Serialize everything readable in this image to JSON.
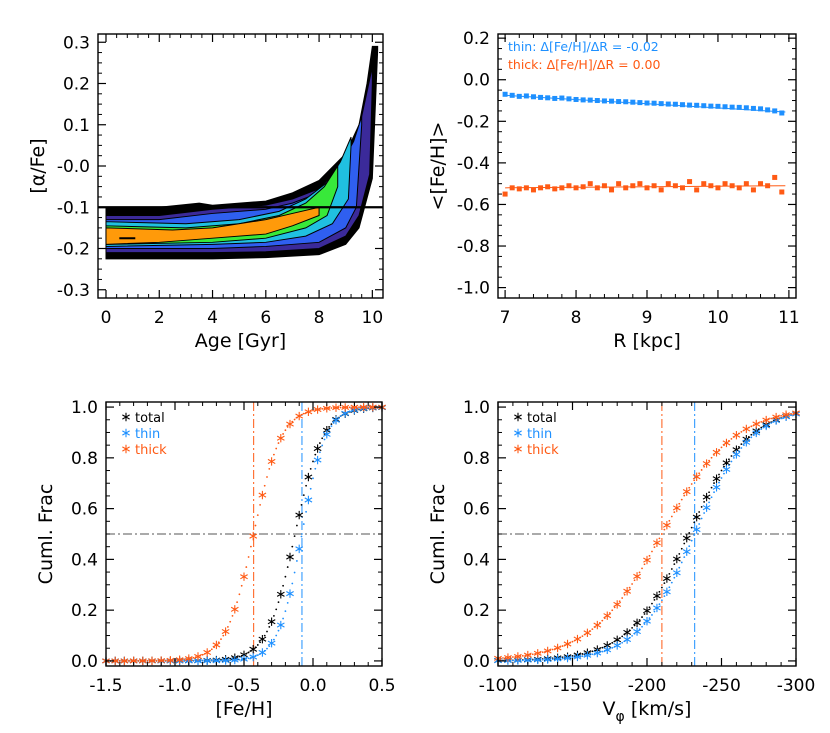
{
  "colors": {
    "blue": "#1e90ff",
    "orange": "#ff5a14",
    "black": "#000000",
    "gray": "#555555",
    "contour": [
      "#000000",
      "#3b2a9a",
      "#2f5ff0",
      "#20c0e0",
      "#38e83a",
      "#ff9a0a"
    ]
  },
  "chart_data": [
    {
      "id": "alpha-age",
      "type": "contour",
      "title": "",
      "xlabel": "Age  [Gyr]",
      "ylabel": "[α/Fe]",
      "xlim": [
        -0.3,
        10.4
      ],
      "ylim": [
        -0.32,
        0.32
      ],
      "xticks": [
        0,
        2,
        4,
        6,
        8,
        10
      ],
      "xtick_labels": [
        "0",
        "2",
        "4",
        "6",
        "8",
        "10"
      ],
      "yticks": [
        -0.3,
        -0.2,
        -0.1,
        0.0,
        0.1,
        0.2,
        0.3
      ],
      "ytick_labels": [
        "-0.3",
        "-0.2",
        "-0.1",
        "-0.0",
        "0.1",
        "0.2",
        "0.3"
      ],
      "hline": -0.1,
      "marker_segment": {
        "x": [
          0.5,
          1.1
        ],
        "y": -0.175
      },
      "contour_levels": [
        {
          "name": "level-1",
          "upper": [
            [
              0,
              -0.1
            ],
            [
              2,
              -0.1
            ],
            [
              3.5,
              -0.09
            ],
            [
              4,
              -0.095
            ],
            [
              6,
              -0.085
            ],
            [
              7,
              -0.065
            ],
            [
              8,
              -0.035
            ],
            [
              9,
              0.03
            ],
            [
              9.5,
              0.1
            ],
            [
              9.8,
              0.2
            ],
            [
              10,
              0.29
            ],
            [
              10.2,
              0.29
            ]
          ],
          "lower": [
            [
              0,
              -0.225
            ],
            [
              4,
              -0.225
            ],
            [
              6,
              -0.222
            ],
            [
              8,
              -0.215
            ],
            [
              9,
              -0.19
            ],
            [
              9.5,
              -0.15
            ],
            [
              10,
              -0.03
            ],
            [
              10.2,
              0.28
            ]
          ]
        },
        {
          "name": "level-2",
          "upper": [
            [
              0,
              -0.12
            ],
            [
              2,
              -0.12
            ],
            [
              4,
              -0.105
            ],
            [
              6,
              -0.095
            ],
            [
              7,
              -0.08
            ],
            [
              8,
              -0.055
            ],
            [
              9,
              0.01
            ],
            [
              9.5,
              0.09
            ],
            [
              9.8,
              0.18
            ],
            [
              10,
              0.24
            ]
          ],
          "lower": [
            [
              0,
              -0.21
            ],
            [
              4,
              -0.21
            ],
            [
              6,
              -0.208
            ],
            [
              8,
              -0.2
            ],
            [
              9,
              -0.17
            ],
            [
              9.5,
              -0.12
            ],
            [
              9.9,
              -0.02
            ],
            [
              10,
              0.2
            ]
          ]
        },
        {
          "name": "level-3",
          "upper": [
            [
              0,
              -0.13
            ],
            [
              2,
              -0.13
            ],
            [
              4,
              -0.115
            ],
            [
              6,
              -0.105
            ],
            [
              7,
              -0.09
            ],
            [
              8,
              -0.065
            ],
            [
              8.8,
              0.0
            ],
            [
              9.3,
              0.06
            ],
            [
              9.6,
              0.12
            ]
          ],
          "lower": [
            [
              0,
              -0.2
            ],
            [
              4,
              -0.2
            ],
            [
              6,
              -0.195
            ],
            [
              8,
              -0.185
            ],
            [
              9,
              -0.15
            ],
            [
              9.4,
              -0.1
            ],
            [
              9.6,
              0.1
            ]
          ]
        },
        {
          "name": "level-4",
          "upper": [
            [
              0,
              -0.135
            ],
            [
              3,
              -0.14
            ],
            [
              5,
              -0.13
            ],
            [
              6.5,
              -0.11
            ],
            [
              7.5,
              -0.08
            ],
            [
              8.3,
              -0.04
            ],
            [
              8.8,
              0.01
            ],
            [
              9.2,
              0.07
            ]
          ],
          "lower": [
            [
              0,
              -0.195
            ],
            [
              4,
              -0.19
            ],
            [
              6,
              -0.185
            ],
            [
              7.5,
              -0.17
            ],
            [
              8.5,
              -0.14
            ],
            [
              9.1,
              -0.08
            ],
            [
              9.2,
              0.05
            ]
          ]
        },
        {
          "name": "level-5",
          "upper": [
            [
              0,
              -0.145
            ],
            [
              3,
              -0.15
            ],
            [
              5,
              -0.14
            ],
            [
              6.5,
              -0.12
            ],
            [
              7.5,
              -0.09
            ],
            [
              8.2,
              -0.05
            ],
            [
              8.7,
              0.0
            ]
          ],
          "lower": [
            [
              0,
              -0.19
            ],
            [
              4,
              -0.185
            ],
            [
              6,
              -0.175
            ],
            [
              7.5,
              -0.15
            ],
            [
              8.3,
              -0.12
            ],
            [
              8.7,
              -0.05
            ]
          ]
        },
        {
          "name": "level-6",
          "upper": [
            [
              0,
              -0.15
            ],
            [
              2.5,
              -0.155
            ],
            [
              4,
              -0.15
            ],
            [
              6,
              -0.13
            ],
            [
              7,
              -0.115
            ],
            [
              8,
              -0.1
            ]
          ],
          "lower": [
            [
              0,
              -0.19
            ],
            [
              2,
              -0.185
            ],
            [
              4,
              -0.175
            ],
            [
              6,
              -0.165
            ],
            [
              7,
              -0.145
            ],
            [
              8,
              -0.12
            ]
          ]
        }
      ]
    },
    {
      "id": "feh-radius",
      "type": "scatter",
      "title": "",
      "xlabel": "R  [kpc]",
      "ylabel": "<[Fe/H]>",
      "xlim": [
        6.9,
        11.1
      ],
      "ylim": [
        -1.05,
        0.22
      ],
      "xticks": [
        7,
        8,
        9,
        10,
        11
      ],
      "xtick_labels": [
        "7",
        "8",
        "9",
        "10",
        "11"
      ],
      "yticks": [
        -1.0,
        -0.8,
        -0.6,
        -0.4,
        -0.2,
        0.0,
        0.2
      ],
      "ytick_labels": [
        "-1.0",
        "-0.8",
        "-0.6",
        "-0.4",
        "-0.2",
        "0.0",
        "0.2"
      ],
      "annotations": [
        "thin: Δ[Fe/H]/ΔR = -0.02",
        "thick: Δ[Fe/H]/ΔR = 0.00"
      ],
      "series": [
        {
          "name": "thin",
          "color": "#1e90ff",
          "x": [
            7.0,
            7.1,
            7.2,
            7.3,
            7.4,
            7.5,
            7.6,
            7.7,
            7.8,
            7.9,
            8.0,
            8.1,
            8.2,
            8.3,
            8.4,
            8.5,
            8.6,
            8.7,
            8.8,
            8.9,
            9.0,
            9.1,
            9.2,
            9.3,
            9.4,
            9.5,
            9.6,
            9.7,
            9.8,
            9.9,
            10.0,
            10.1,
            10.2,
            10.3,
            10.4,
            10.5,
            10.6,
            10.7,
            10.8,
            10.9
          ],
          "y": [
            -0.07,
            -0.075,
            -0.08,
            -0.078,
            -0.082,
            -0.085,
            -0.087,
            -0.09,
            -0.088,
            -0.092,
            -0.095,
            -0.097,
            -0.098,
            -0.1,
            -0.102,
            -0.103,
            -0.105,
            -0.106,
            -0.108,
            -0.11,
            -0.112,
            -0.113,
            -0.115,
            -0.117,
            -0.118,
            -0.12,
            -0.122,
            -0.123,
            -0.125,
            -0.127,
            -0.128,
            -0.13,
            -0.132,
            -0.133,
            -0.135,
            -0.138,
            -0.14,
            -0.145,
            -0.15,
            -0.16
          ],
          "fit": [
            -0.075,
            -0.155
          ]
        },
        {
          "name": "thick",
          "color": "#ff5a14",
          "x": [
            7.0,
            7.1,
            7.2,
            7.3,
            7.4,
            7.5,
            7.6,
            7.7,
            7.8,
            7.9,
            8.0,
            8.1,
            8.2,
            8.3,
            8.4,
            8.5,
            8.6,
            8.7,
            8.8,
            8.9,
            9.0,
            9.1,
            9.2,
            9.3,
            9.4,
            9.5,
            9.6,
            9.7,
            9.8,
            9.9,
            10.0,
            10.1,
            10.2,
            10.3,
            10.4,
            10.5,
            10.6,
            10.7,
            10.8,
            10.9
          ],
          "y": [
            -0.55,
            -0.52,
            -0.525,
            -0.52,
            -0.53,
            -0.52,
            -0.515,
            -0.525,
            -0.52,
            -0.51,
            -0.52,
            -0.515,
            -0.5,
            -0.52,
            -0.51,
            -0.53,
            -0.5,
            -0.52,
            -0.51,
            -0.5,
            -0.52,
            -0.51,
            -0.53,
            -0.5,
            -0.51,
            -0.52,
            -0.49,
            -0.53,
            -0.5,
            -0.51,
            -0.52,
            -0.5,
            -0.51,
            -0.52,
            -0.5,
            -0.53,
            -0.5,
            -0.51,
            -0.47,
            -0.54
          ],
          "fit": [
            -0.52,
            -0.51
          ]
        }
      ]
    },
    {
      "id": "cdf-feh",
      "type": "line",
      "title": "",
      "xlabel": "[Fe/H]",
      "ylabel": "Cuml. Frac",
      "xlim": [
        -1.5,
        0.5
      ],
      "ylim": [
        -0.02,
        1.02
      ],
      "xticks": [
        -1.5,
        -1.0,
        -0.5,
        0.0,
        0.5
      ],
      "xtick_labels": [
        "-1.5",
        "-1.0",
        "-0.5",
        "0.0",
        "0.5"
      ],
      "yticks": [
        0.0,
        0.2,
        0.4,
        0.6,
        0.8,
        1.0
      ],
      "ytick_labels": [
        "0.0",
        "0.2",
        "0.4",
        "0.6",
        "0.8",
        "1.0"
      ],
      "hline": 0.5,
      "vlines": [
        {
          "x": -0.43,
          "series": "thick"
        },
        {
          "x": -0.08,
          "series": "thin"
        }
      ],
      "legend_position": "top-left",
      "series": [
        {
          "name": "total",
          "color": "#000000",
          "median": -0.13,
          "width": 0.1
        },
        {
          "name": "thin",
          "color": "#1e90ff",
          "median": -0.08,
          "width": 0.085
        },
        {
          "name": "thick",
          "color": "#ff5a14",
          "median": -0.43,
          "width": 0.1
        }
      ]
    },
    {
      "id": "cdf-vphi",
      "type": "line",
      "title": "",
      "xlabel": "Vφ  [km/s]",
      "ylabel": "Cuml. Frac",
      "xlim": [
        -100,
        -300
      ],
      "ylim": [
        -0.02,
        1.02
      ],
      "xticks": [
        -100,
        -150,
        -200,
        -250,
        -300
      ],
      "xtick_labels": [
        "-100",
        "-150",
        "-200",
        "-250",
        "-300"
      ],
      "yticks": [
        0.0,
        0.2,
        0.4,
        0.6,
        0.8,
        1.0
      ],
      "ytick_labels": [
        "0.0",
        "0.2",
        "0.4",
        "0.6",
        "0.8",
        "1.0"
      ],
      "hline": 0.5,
      "vlines": [
        {
          "x": -210,
          "series": "thick"
        },
        {
          "x": -232,
          "series": "thin"
        }
      ],
      "legend_position": "top-left",
      "series": [
        {
          "name": "total",
          "color": "#000000",
          "median": -228,
          "width": 20
        },
        {
          "name": "thin",
          "color": "#1e90ff",
          "median": -232,
          "width": 19
        },
        {
          "name": "thick",
          "color": "#ff5a14",
          "median": -210,
          "width": 24
        }
      ]
    }
  ]
}
